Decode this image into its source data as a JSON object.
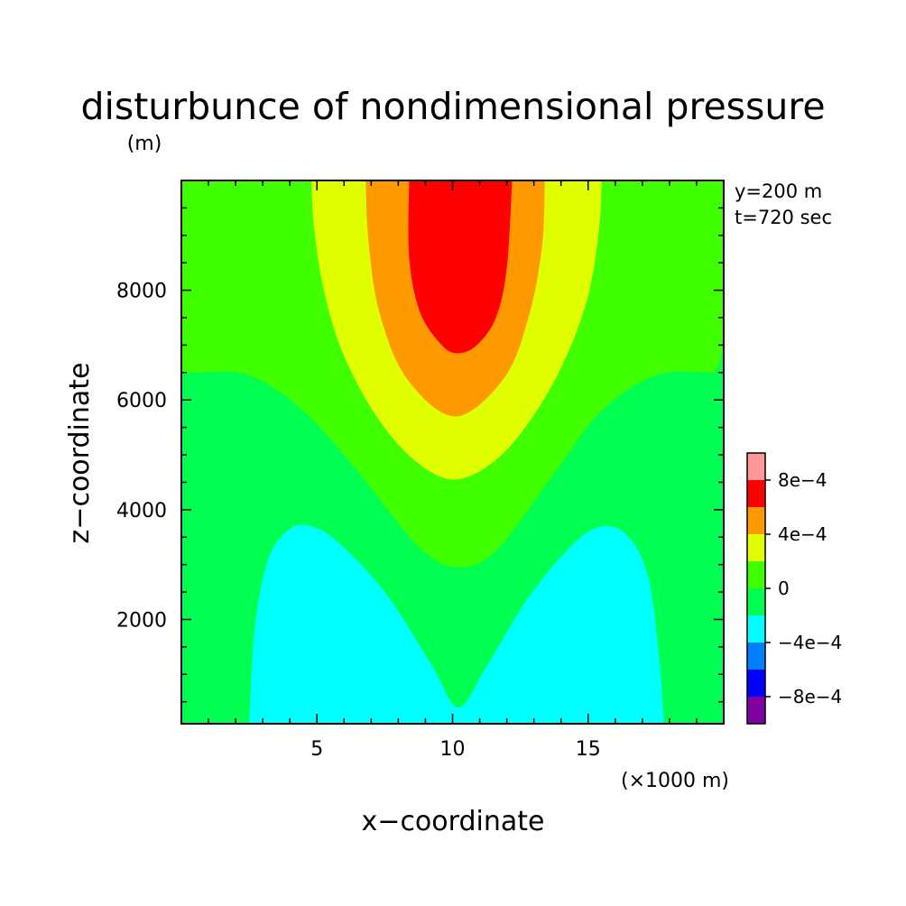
{
  "chart_data": {
    "type": "heatmap",
    "title": "disturbunce of nondimensional pressure",
    "units_label": "(m)",
    "info_lines": [
      "y=200 m",
      "t=720 sec"
    ],
    "xlabel": "x−coordinate",
    "ylabel": "z−coordinate",
    "x_unit_label": "(×1000 m)",
    "xlim": [
      0,
      20000
    ],
    "ylim": [
      100,
      10000
    ],
    "x_ticks": [
      {
        "value": 5000,
        "label": "5"
      },
      {
        "value": 10000,
        "label": "10"
      },
      {
        "value": 15000,
        "label": "15"
      }
    ],
    "y_ticks": [
      {
        "value": 2000,
        "label": "2000"
      },
      {
        "value": 4000,
        "label": "4000"
      },
      {
        "value": 6000,
        "label": "6000"
      },
      {
        "value": 8000,
        "label": "8000"
      }
    ],
    "colorbar": {
      "bins": [
        {
          "from": -0.001,
          "to": -0.0008,
          "color": "#8000a0"
        },
        {
          "from": -0.0008,
          "to": -0.0006,
          "color": "#0000ff"
        },
        {
          "from": -0.0006,
          "to": -0.0004,
          "color": "#0080ff"
        },
        {
          "from": -0.0004,
          "to": -0.0002,
          "color": "#00ffff"
        },
        {
          "from": -0.0002,
          "to": 0,
          "color": "#00ff50"
        },
        {
          "from": 0,
          "to": 0.0002,
          "color": "#40ff00"
        },
        {
          "from": 0.0002,
          "to": 0.0004,
          "color": "#e0ff00"
        },
        {
          "from": 0.0004,
          "to": 0.0006,
          "color": "#ff9900"
        },
        {
          "from": 0.0006,
          "to": 0.0008,
          "color": "#ff0000"
        },
        {
          "from": 0.0008,
          "to": 0.001,
          "color": "#ff9999"
        }
      ],
      "labels": [
        {
          "value": -0.0008,
          "label": "−8e−4"
        },
        {
          "value": -0.0004,
          "label": "−4e−4"
        },
        {
          "value": 0,
          "label": "0"
        },
        {
          "value": 0.0004,
          "label": "4e−4"
        },
        {
          "value": 0.0008,
          "label": "8e−4"
        }
      ]
    },
    "regions": [
      {
        "level": "0 to 2e-4",
        "color": "#40ff00",
        "boundary": [
          [
            0,
            100
          ],
          [
            20000,
            100
          ],
          [
            20000,
            10000
          ],
          [
            0,
            10000
          ]
        ]
      },
      {
        "level": "-2e-4 to 0",
        "color": "#00ff50",
        "boundary": [
          [
            0,
            100
          ],
          [
            20000,
            100
          ],
          [
            20000,
            6500
          ],
          [
            19600,
            6500
          ],
          [
            17500,
            6450
          ],
          [
            15500,
            5800
          ],
          [
            13800,
            4700
          ],
          [
            11700,
            3300
          ],
          [
            10300,
            2950
          ],
          [
            8800,
            3300
          ],
          [
            6500,
            4700
          ],
          [
            4500,
            5800
          ],
          [
            2500,
            6450
          ],
          [
            500,
            6500
          ],
          [
            0,
            6500
          ]
        ]
      },
      {
        "level": "-4e-4 to -2e-4",
        "color": "#00ffff",
        "boundary": [
          [
            2500,
            100
          ],
          [
            2700,
            1800
          ],
          [
            3200,
            3100
          ],
          [
            4000,
            3650
          ],
          [
            4800,
            3700
          ],
          [
            5800,
            3400
          ],
          [
            7500,
            2500
          ],
          [
            9200,
            1200
          ],
          [
            10200,
            400
          ],
          [
            11200,
            1100
          ],
          [
            12800,
            2400
          ],
          [
            14500,
            3400
          ],
          [
            15600,
            3700
          ],
          [
            16500,
            3500
          ],
          [
            17200,
            2800
          ],
          [
            17600,
            1400
          ],
          [
            17800,
            100
          ]
        ]
      },
      {
        "level": "2e-4 to 4e-4",
        "color": "#e0ff00",
        "boundary": [
          [
            4800,
            10000
          ],
          [
            4900,
            9100
          ],
          [
            5300,
            7900
          ],
          [
            6000,
            6800
          ],
          [
            7200,
            5700
          ],
          [
            8600,
            4900
          ],
          [
            10100,
            4550
          ],
          [
            11700,
            4950
          ],
          [
            13100,
            5800
          ],
          [
            14200,
            6800
          ],
          [
            15000,
            7900
          ],
          [
            15400,
            9100
          ],
          [
            15500,
            10000
          ]
        ]
      },
      {
        "level": "4e-4 to 6e-4",
        "color": "#ff9900",
        "boundary": [
          [
            6800,
            10000
          ],
          [
            6900,
            8900
          ],
          [
            7300,
            7600
          ],
          [
            8300,
            6400
          ],
          [
            10100,
            5700
          ],
          [
            11900,
            6400
          ],
          [
            12800,
            7500
          ],
          [
            13300,
            8800
          ],
          [
            13400,
            10000
          ]
        ]
      },
      {
        "level": "6e-4 to 8e-4",
        "color": "#ff0000",
        "boundary": [
          [
            8400,
            10000
          ],
          [
            8400,
            8600
          ],
          [
            8800,
            7600
          ],
          [
            9600,
            7000
          ],
          [
            10200,
            6850
          ],
          [
            10900,
            7000
          ],
          [
            11600,
            7500
          ],
          [
            12000,
            8400
          ],
          [
            12200,
            10000
          ]
        ]
      }
    ]
  }
}
